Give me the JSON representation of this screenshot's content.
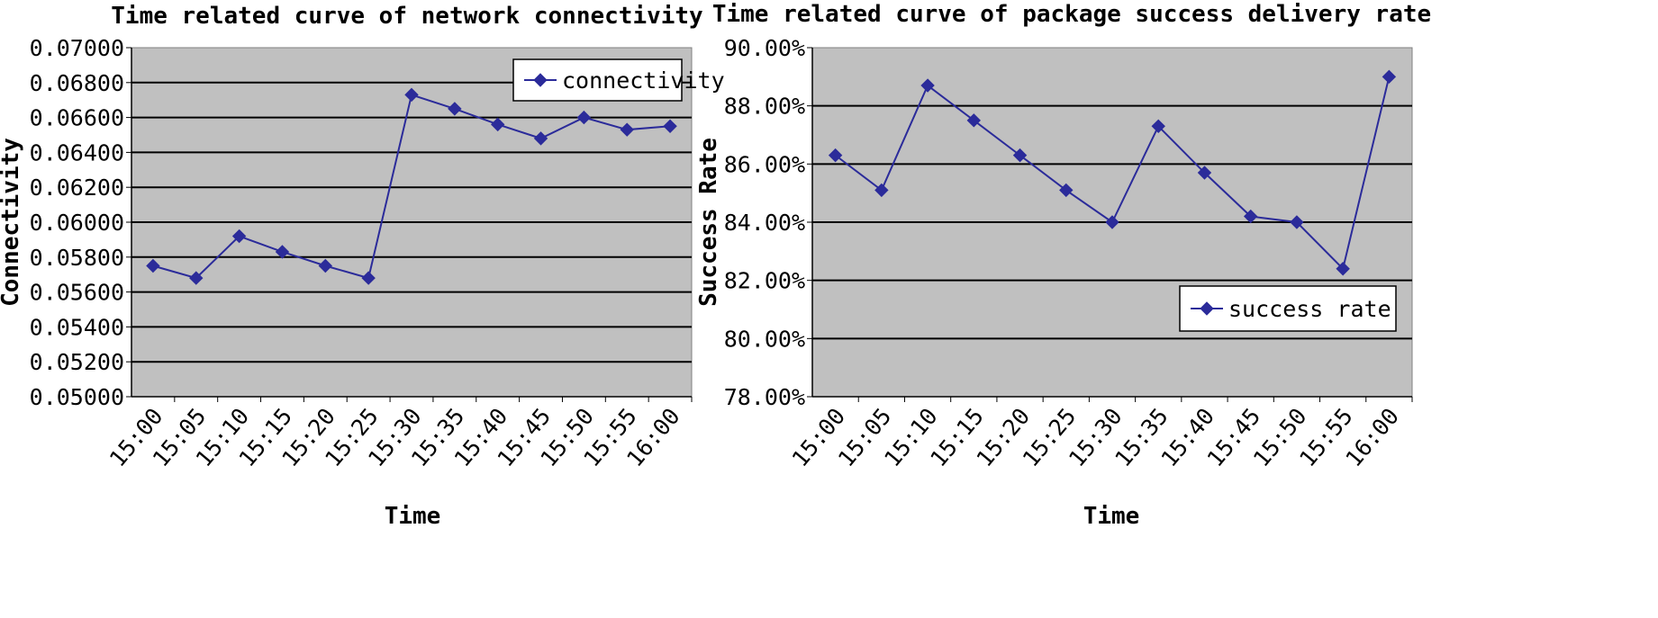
{
  "chart_data": [
    {
      "type": "line",
      "title": "Time related curve of network connectivity",
      "xlabel": "Time",
      "ylabel": "Connectivity",
      "categories": [
        "15:00",
        "15:05",
        "15:10",
        "15:15",
        "15:20",
        "15:25",
        "15:30",
        "15:35",
        "15:40",
        "15:45",
        "15:50",
        "15:55",
        "16:00"
      ],
      "series": [
        {
          "name": "connectivity",
          "values": [
            0.0575,
            0.0568,
            0.0592,
            0.0583,
            0.0575,
            0.0568,
            0.0673,
            0.0665,
            0.0656,
            0.0648,
            0.066,
            0.0653,
            0.0655
          ]
        }
      ],
      "ylim": [
        0.05,
        0.07
      ],
      "yticks": [
        "0.05000",
        "0.05200",
        "0.05400",
        "0.05600",
        "0.05800",
        "0.06000",
        "0.06200",
        "0.06400",
        "0.06600",
        "0.06800",
        "0.07000"
      ],
      "grid": true,
      "legend": "top-right",
      "colors": {
        "series": "#2b2b9a",
        "plot_bg": "#c0c0c0",
        "grid": "#000000"
      }
    },
    {
      "type": "line",
      "title": "Time related curve of package success delivery rate",
      "xlabel": "Time",
      "ylabel": "Success Rate",
      "categories": [
        "15:00",
        "15:05",
        "15:10",
        "15:15",
        "15:20",
        "15:25",
        "15:30",
        "15:35",
        "15:40",
        "15:45",
        "15:50",
        "15:55",
        "16:00"
      ],
      "series": [
        {
          "name": "success rate",
          "values": [
            86.3,
            85.1,
            88.7,
            87.5,
            86.3,
            85.1,
            84.0,
            87.3,
            85.7,
            84.2,
            84.0,
            82.4,
            89.0
          ]
        }
      ],
      "ylim": [
        78,
        90
      ],
      "yticks": [
        "78.00%",
        "80.00%",
        "82.00%",
        "84.00%",
        "86.00%",
        "88.00%",
        "90.00%"
      ],
      "grid": true,
      "legend": "right",
      "colors": {
        "series": "#2b2b9a",
        "plot_bg": "#c0c0c0",
        "grid": "#000000"
      }
    }
  ]
}
